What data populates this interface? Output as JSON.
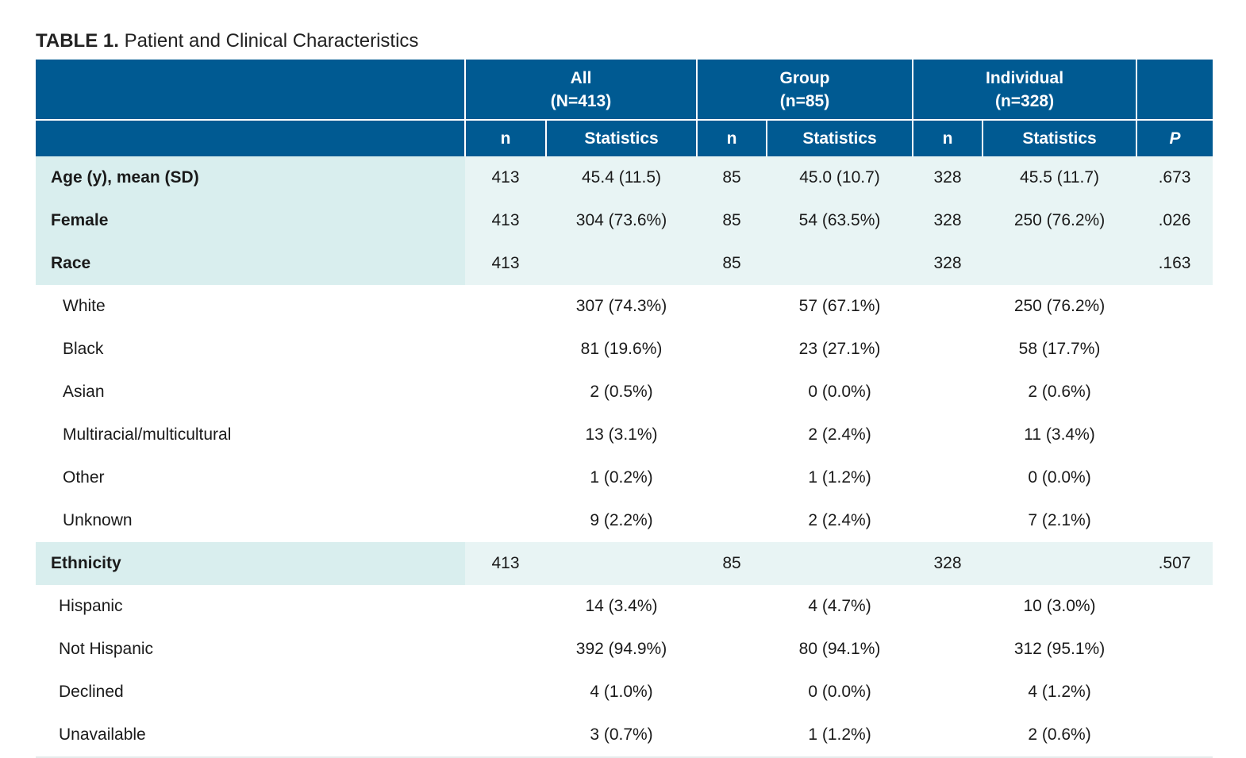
{
  "caption": {
    "number": "TABLE 1.",
    "title": "Patient and Clinical Characteristics"
  },
  "header": {
    "groups": [
      {
        "name": "All",
        "count": "(N=413)"
      },
      {
        "name": "Group",
        "count": "(n=85)"
      },
      {
        "name": "Individual",
        "count": "(n=328)"
      }
    ],
    "n_label": "n",
    "stats_label": "Statistics",
    "p_label": "P"
  },
  "rows": {
    "age": {
      "label": "Age (y), mean (SD)",
      "all_n": "413",
      "all_stat": "45.4 (11.5)",
      "group_n": "85",
      "group_stat": "45.0 (10.7)",
      "ind_n": "328",
      "ind_stat": "45.5 (11.7)",
      "p": ".673"
    },
    "female": {
      "label": "Female",
      "all_n": "413",
      "all_stat": "304 (73.6%)",
      "group_n": "85",
      "group_stat": "54 (63.5%)",
      "ind_n": "328",
      "ind_stat": "250 (76.2%)",
      "p": ".026"
    },
    "race": {
      "label": "Race",
      "all_n": "413",
      "group_n": "85",
      "ind_n": "328",
      "p": ".163"
    },
    "white": {
      "label": "White",
      "all_stat": "307 (74.3%)",
      "group_stat": "57 (67.1%)",
      "ind_stat": "250 (76.2%)"
    },
    "black": {
      "label": "Black",
      "all_stat": "81 (19.6%)",
      "group_stat": "23 (27.1%)",
      "ind_stat": "58 (17.7%)"
    },
    "asian": {
      "label": "Asian",
      "all_stat": "2 (0.5%)",
      "group_stat": "0 (0.0%)",
      "ind_stat": "2 (0.6%)"
    },
    "multiracial": {
      "label": "Multiracial/multicultural",
      "all_stat": "13 (3.1%)",
      "group_stat": "2 (2.4%)",
      "ind_stat": "11 (3.4%)"
    },
    "other": {
      "label": "Other",
      "all_stat": "1 (0.2%)",
      "group_stat": "1 (1.2%)",
      "ind_stat": "0 (0.0%)"
    },
    "unknown": {
      "label": "Unknown",
      "all_stat": "9 (2.2%)",
      "group_stat": "2 (2.4%)",
      "ind_stat": "7 (2.1%)"
    },
    "ethnicity": {
      "label": "Ethnicity",
      "all_n": "413",
      "group_n": "85",
      "ind_n": "328",
      "p": ".507"
    },
    "hispanic": {
      "label": "Hispanic",
      "all_stat": "14 (3.4%)",
      "group_stat": "4 (4.7%)",
      "ind_stat": "10 (3.0%)"
    },
    "not_hispanic": {
      "label": "Not Hispanic",
      "all_stat": "392 (94.9%)",
      "group_stat": "80 (94.1%)",
      "ind_stat": "312 (95.1%)"
    },
    "declined": {
      "label": "Declined",
      "all_stat": "4 (1.0%)",
      "group_stat": "0 (0.0%)",
      "ind_stat": "4 (1.2%)"
    },
    "unavailable": {
      "label": "Unavailable",
      "all_stat": "3 (0.7%)",
      "group_stat": "1 (1.2%)",
      "ind_stat": "2 (0.6%)"
    }
  }
}
